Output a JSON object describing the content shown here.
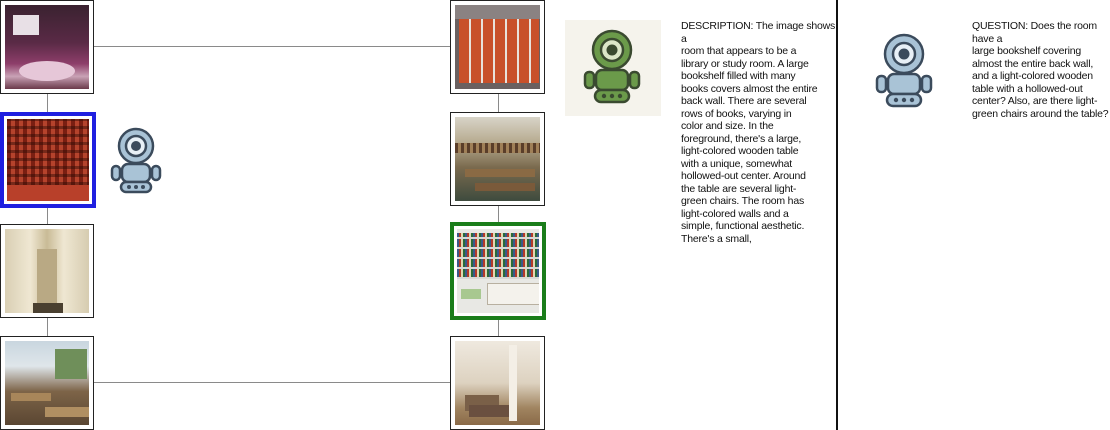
{
  "description": {
    "text": "DESCRIPTION: The image shows a\nroom that appears to be a\nlibrary or study room. A large\nbookshelf filled with many\nbooks covers almost the entire\nback wall. There are several\nrows of books, varying in\ncolor and size. In the\nforeground, there's a large,\nlight-colored wooden table\nwith a unique, somewhat\nhollowed-out center. Around\nthe table are several light-\ngreen chairs. The room has\nlight-colored walls and a\nsimple, functional aesthetic.\nThere's a small,"
  },
  "question": {
    "text": "QUESTION: Does the room have a\nlarge bookshelf covering\nalmost the entire back wall,\nand a light-colored wooden\ntable with a hollowed-out\ncenter? Also, are there light-\ngreen chairs around the table?"
  },
  "colors": {
    "selected_blue": "#1f1fe0",
    "selected_green": "#1a7d1a",
    "robot_green": "#6b9a4a",
    "robot_blue": "#a9c3d6"
  },
  "icons": [
    "robot-icon-blue",
    "robot-icon-green",
    "robot-icon-blue"
  ]
}
